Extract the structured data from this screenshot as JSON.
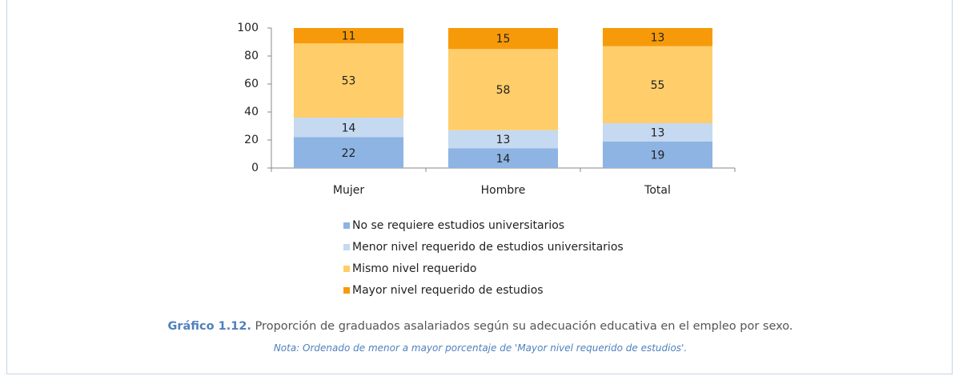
{
  "chart_data": {
    "type": "stacked_bar",
    "categories": [
      "Mujer",
      "Hombre",
      "Total"
    ],
    "series": [
      {
        "name": "No se requiere estudios universitarios",
        "color": "#8db4e2",
        "values": [
          22,
          14,
          19
        ]
      },
      {
        "name": "Menor nivel requerido de estudios universitarios",
        "color": "#c5d9f1",
        "values": [
          14,
          13,
          13
        ]
      },
      {
        "name": "Mismo nivel requerido",
        "color": "#ffcd69",
        "values": [
          53,
          58,
          55
        ]
      },
      {
        "name": "Mayor nivel requerido de estudios",
        "color": "#f79a0a",
        "values": [
          11,
          15,
          13
        ]
      }
    ],
    "ylim": [
      0,
      100
    ],
    "yticks": [
      0,
      20,
      40,
      60,
      80,
      100
    ],
    "grid": false,
    "legend": "bottom",
    "caption_label": "Gráfico 1.12.",
    "caption": "Proporción de graduados asalariados según su adecuación educativa en el empleo por sexo.",
    "note": "Nota: Ordenado de menor a mayor porcentaje de 'Mayor nivel requerido de estudios'."
  }
}
